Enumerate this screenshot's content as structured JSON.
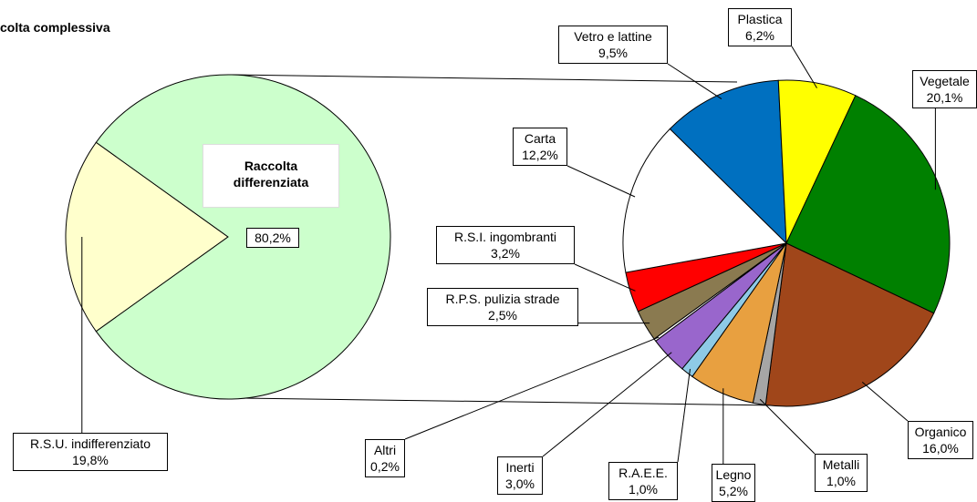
{
  "chart_data": [
    {
      "type": "pie",
      "title": "colta complessiva",
      "categories": [
        "R.S.U. indifferenziato",
        "Raccolta differenziata"
      ],
      "values": [
        19.8,
        80.2
      ],
      "value_labels": [
        "19,8%",
        "80,2%"
      ],
      "colors": [
        "#ffffcc",
        "#ccffcc"
      ]
    },
    {
      "type": "pie",
      "categories": [
        "Vetro e lattine",
        "Plastica",
        "Vegetale",
        "Organico",
        "Metalli",
        "Legno",
        "R.A.E.E.",
        "Inerti",
        "Altri",
        "R.P.S. pulizia strade",
        "R.S.I. ingombranti",
        "Carta"
      ],
      "values": [
        9.5,
        6.2,
        20.1,
        16.0,
        1.0,
        5.2,
        1.0,
        3.0,
        0.2,
        2.5,
        3.2,
        12.2
      ],
      "value_labels": [
        "9,5%",
        "6,2%",
        "20,1%",
        "16,0%",
        "1,0%",
        "5,2%",
        "1,0%",
        "3,0%",
        "0,2%",
        "2,5%",
        "3,2%",
        "12,2%"
      ],
      "colors": [
        "#0070c0",
        "#ffff00",
        "#008000",
        "#a0461a",
        "#a6a6a6",
        "#e8a040",
        "#8ecae6",
        "#9966cc",
        "#ffffff",
        "#8a7a50",
        "#ff0000",
        "#ffffff"
      ]
    }
  ]
}
